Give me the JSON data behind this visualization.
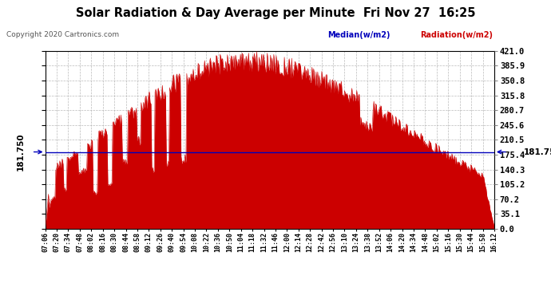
{
  "title": "Solar Radiation & Day Average per Minute  Fri Nov 27  16:25",
  "copyright": "Copyright 2020 Cartronics.com",
  "median_label": "Median(w/m2)",
  "radiation_label": "Radiation(w/m2)",
  "median_value": 181.75,
  "y_min": 0.0,
  "y_max": 421.0,
  "y_ticks": [
    0.0,
    35.1,
    70.2,
    105.2,
    140.3,
    175.4,
    210.5,
    245.6,
    280.7,
    315.8,
    350.8,
    385.9,
    421.0
  ],
  "background_color": "#ffffff",
  "bar_color": "#cc0000",
  "median_color": "#0000bb",
  "grid_color": "#aaaaaa",
  "title_color": "#000000",
  "copyright_color": "#555555",
  "x_labels": [
    "07:06",
    "07:20",
    "07:34",
    "07:48",
    "08:02",
    "08:16",
    "08:30",
    "08:44",
    "08:58",
    "09:12",
    "09:26",
    "09:40",
    "09:54",
    "10:08",
    "10:22",
    "10:36",
    "10:50",
    "11:04",
    "11:18",
    "11:32",
    "11:46",
    "12:00",
    "12:14",
    "12:28",
    "12:42",
    "12:56",
    "13:10",
    "13:24",
    "13:38",
    "13:52",
    "14:06",
    "14:20",
    "14:34",
    "14:48",
    "15:02",
    "15:16",
    "15:30",
    "15:44",
    "15:58",
    "16:12"
  ]
}
